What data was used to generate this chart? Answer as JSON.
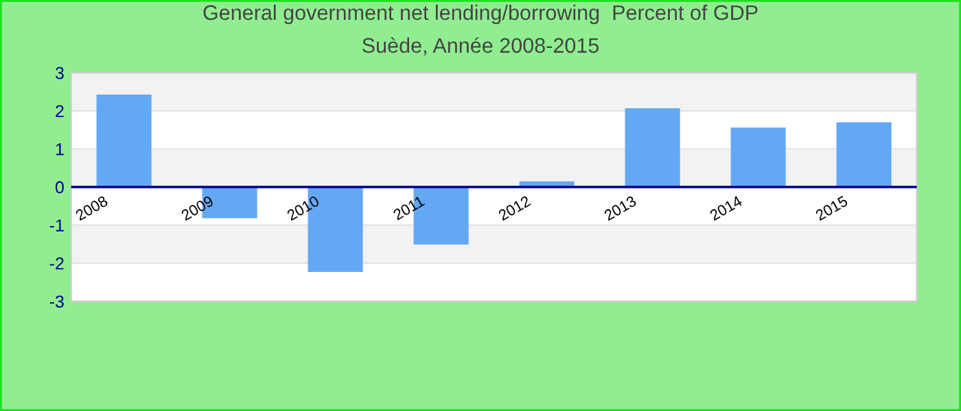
{
  "chart_data": {
    "type": "bar",
    "title": "General government net lending/borrowing  Percent of GDP",
    "subtitle": "Suède, Année 2008-2015",
    "categories": [
      "2008",
      "2009",
      "2010",
      "2011",
      "2012",
      "2013",
      "2014",
      "2015"
    ],
    "values": [
      2.43,
      -0.82,
      -2.23,
      -1.51,
      0.15,
      2.07,
      1.56,
      1.7
    ],
    "color": "#63a8f4",
    "ylim": [
      -3,
      3
    ],
    "yticks": [
      -3,
      -2,
      -1,
      0,
      1,
      2,
      3
    ],
    "grid": "y",
    "legend": false
  }
}
